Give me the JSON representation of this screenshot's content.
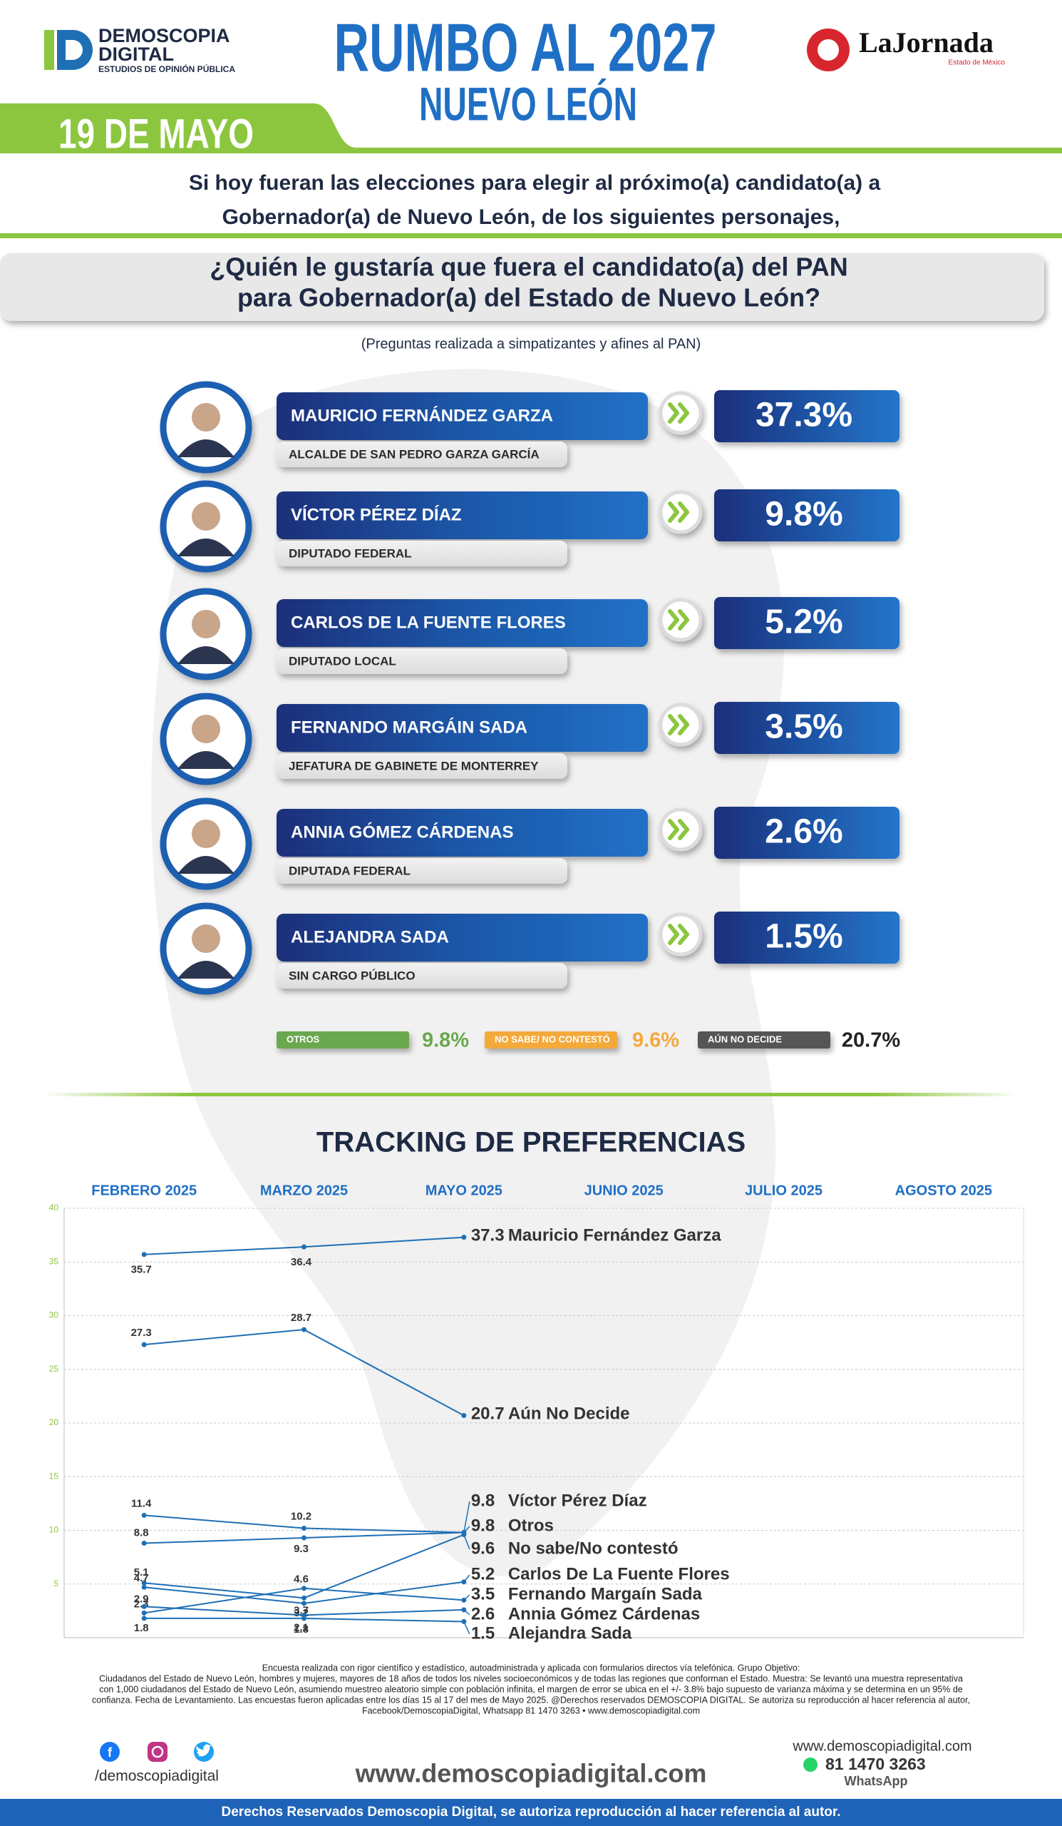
{
  "header": {
    "logo_name": "DEMOSCOPIA",
    "logo_name2": "DIGITAL",
    "logo_tagline": "ESTUDIOS DE OPINIÓN PÚBLICA",
    "title": "RUMBO AL 2027",
    "subtitle": "NUEVO LEÓN",
    "date": "19 DE MAYO",
    "partner": "LaJornada",
    "partner_sub": "Estado de México"
  },
  "intro": [
    "Si hoy fueran las elecciones para elegir al próximo(a) candidato(a) a",
    "Gobernador(a) de Nuevo León, de los siguientes personajes,"
  ],
  "question": [
    "¿Quién le gustaría que fuera el candidato(a) del PAN",
    "para Gobernador(a) del Estado de Nuevo León?"
  ],
  "note": "(Preguntas realizada a simpatizantes y afines al PAN)",
  "candidates": [
    {
      "name": "MAURICIO FERNÁNDEZ GARZA",
      "role": "ALCALDE DE SAN PEDRO GARZA GARCÍA",
      "result": "37.3%"
    },
    {
      "name": "VÍCTOR PÉREZ DÍAZ",
      "role": "DIPUTADO FEDERAL",
      "result": "9.8%"
    },
    {
      "name": "CARLOS DE LA FUENTE FLORES",
      "role": "DIPUTADO LOCAL",
      "result": "5.2%"
    },
    {
      "name": "FERNANDO MARGÁIN SADA",
      "role": "JEFATURA DE GABINETE DE MONTERREY",
      "result": "3.5%"
    },
    {
      "name": "ANNIA GÓMEZ CÁRDENAS",
      "role": "DIPUTADA FEDERAL",
      "result": "2.6%"
    },
    {
      "name": "ALEJANDRA SADA",
      "role": "SIN CARGO PÚBLICO",
      "result": "1.5%"
    }
  ],
  "others": [
    {
      "label": "OTROS",
      "result": "9.8%",
      "color": "#6aa84f"
    },
    {
      "label": "NO SABE/ NO CONTESTÓ",
      "result": "9.6%",
      "color": "#f4a93b"
    },
    {
      "label": "AÚN NO DECIDE",
      "result": "20.7%",
      "color": "#555555"
    }
  ],
  "chart_data": {
    "type": "line",
    "title": "TRACKING DE PREFERENCIAS",
    "categories": [
      "FEBRERO 2025",
      "MARZO 2025",
      "MAYO 2025",
      "JUNIO 2025",
      "JULIO 2025",
      "AGOSTO 2025"
    ],
    "ylim": [
      0,
      40
    ],
    "yticks": [
      5,
      10,
      15,
      20,
      25,
      30,
      35,
      40
    ],
    "grid": true,
    "series": [
      {
        "name": "Mauricio Fernández Garza",
        "color": "#1f6fb5",
        "values": [
          35.7,
          36.4,
          37.3,
          null,
          null,
          null
        ]
      },
      {
        "name": "Aún No Decide",
        "color": "#1f6fb5",
        "values": [
          27.3,
          28.7,
          20.7,
          null,
          null,
          null
        ]
      },
      {
        "name": "Víctor Pérez Díaz",
        "color": "#1f6fb5",
        "values": [
          11.4,
          10.2,
          9.8,
          null,
          null,
          null
        ]
      },
      {
        "name": "Otros",
        "color": "#1f6fb5",
        "values": [
          8.8,
          9.3,
          9.8,
          null,
          null,
          null
        ]
      },
      {
        "name": "No sabe/No contestó",
        "color": "#1f6fb5",
        "values": [
          5.1,
          3.7,
          9.6,
          null,
          null,
          null
        ]
      },
      {
        "name": "Carlos De La Fuente Flores",
        "color": "#1f6fb5",
        "values": [
          4.7,
          3.2,
          5.2,
          null,
          null,
          null
        ]
      },
      {
        "name": "Fernando Margaín Sada",
        "color": "#1f6fb5",
        "values": [
          2.3,
          4.6,
          3.5,
          null,
          null,
          null
        ]
      },
      {
        "name": "Annia Gómez Cárdenas",
        "color": "#1f6fb5",
        "values": [
          2.9,
          2.1,
          2.6,
          null,
          null,
          null
        ]
      },
      {
        "name": "Alejandra Sada",
        "color": "#1f6fb5",
        "values": [
          1.8,
          1.8,
          1.5,
          null,
          null,
          null
        ]
      }
    ]
  },
  "footer": {
    "methodology": [
      "Encuesta realizada con rigor científico y estadístico, autoadministrada y aplicada con formularios directos vía telefónica. Grupo Objetivo:",
      "Ciudadanos del Estado de Nuevo León, hombres y mujeres, mayores de 18 años de todos los niveles socioeconómicos y de todas las regiones que conforman el Estado. Muestra: Se levantó una muestra representativa",
      "con 1,000 ciudadanos del Estado de Nuevo León, asumiendo muestreo aleatorio simple con población infinita, el margen de error se ubica en el +/- 3.8% bajo supuesto de varianza máxima y se determina en un 95% de",
      "confianza. Fecha de Levantamiento. Las encuestas fueron aplicadas entre los días 15 al 17 del mes de Mayo 2025. @Derechos reservados DEMOSCOPIA DIGITAL. Se autoriza su reproducción al hacer referencia al autor,",
      "Facebook/DemoscopiaDigital, Whatsapp 81 1470 3263 • www.demoscopiadigital.com"
    ],
    "social_handle": "/demoscopiadigital",
    "website": "www.demoscopiadigital.com",
    "website_small": "www.demoscopiadigital.com",
    "phone": "81 1470 3263",
    "phone_label": "WhatsApp",
    "rights": "Derechos Reservados Demoscopia Digital, se autoriza reproducción al hacer referencia al autor."
  }
}
